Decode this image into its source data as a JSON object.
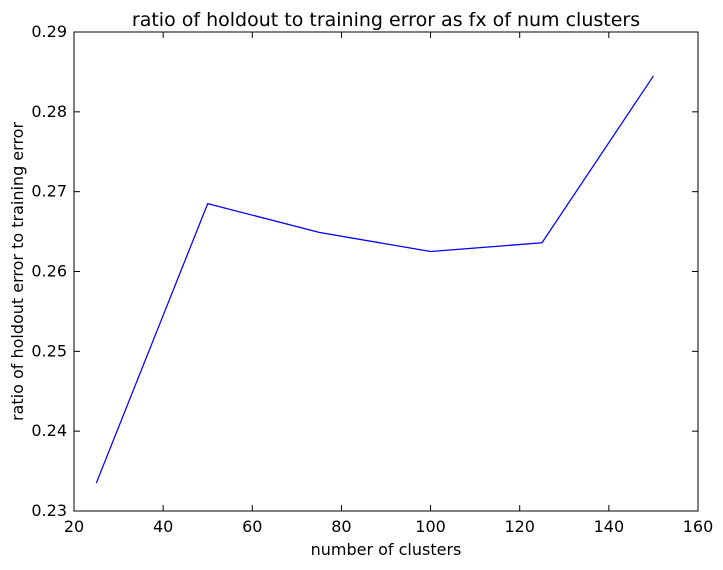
{
  "chart_data": {
    "type": "line",
    "title": "ratio of holdout to training error as fx of num clusters",
    "xlabel": "number of clusters",
    "ylabel": "ratio of holdout error to training error",
    "xlim": [
      20,
      160
    ],
    "ylim": [
      0.23,
      0.29
    ],
    "xticks": [
      20,
      40,
      60,
      80,
      100,
      120,
      140,
      160
    ],
    "yticks": [
      0.23,
      0.24,
      0.25,
      0.26,
      0.27,
      0.28,
      0.29
    ],
    "xtick_labels": [
      "20",
      "40",
      "60",
      "80",
      "100",
      "120",
      "140",
      "160"
    ],
    "ytick_labels": [
      "0.23",
      "0.24",
      "0.25",
      "0.26",
      "0.27",
      "0.28",
      "0.29"
    ],
    "grid": false,
    "series": [
      {
        "color": "#0000ff",
        "x": [
          25,
          50,
          75,
          100,
          125,
          150
        ],
        "y": [
          0.2335,
          0.2685,
          0.2649,
          0.2625,
          0.2636,
          0.2845
        ]
      }
    ]
  }
}
